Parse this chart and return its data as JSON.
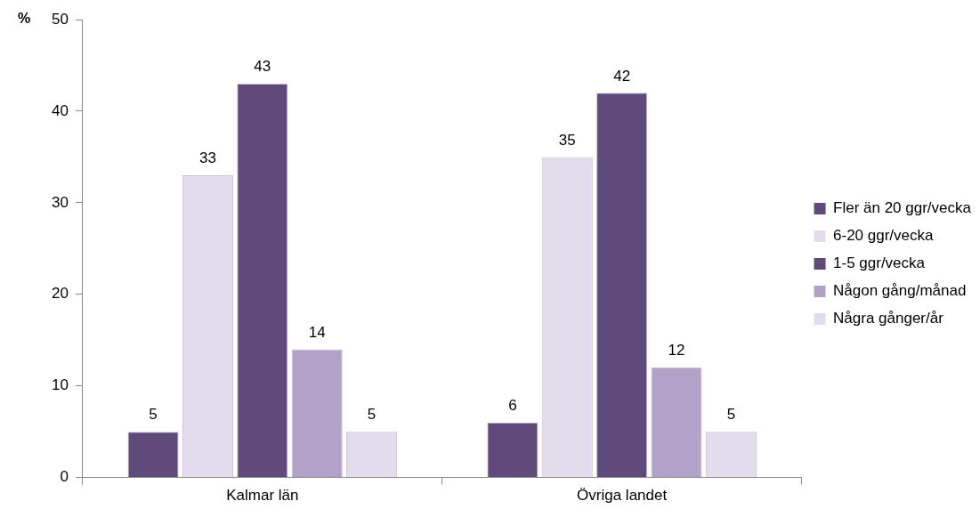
{
  "chart_data": {
    "type": "bar",
    "ylabel": "%",
    "categories": [
      "Kalmar län",
      "Övriga landet"
    ],
    "series": [
      {
        "name": "Fler än 20 ggr/vecka",
        "color": "#5f4a7b",
        "values": [
          5,
          6
        ]
      },
      {
        "name": "6-20 ggr/vecka",
        "color": "#e2dcec",
        "values": [
          33,
          35
        ]
      },
      {
        "name": "1-5 ggr/vecka",
        "color": "#5f4a7b",
        "values": [
          43,
          42
        ]
      },
      {
        "name": "Någon gång/månad",
        "color": "#b3a2c7",
        "values": [
          14,
          12
        ]
      },
      {
        "name": "Några gånger/år",
        "color": "#e2dcec",
        "values": [
          5,
          5
        ]
      }
    ],
    "ylim": [
      0,
      50
    ],
    "yticks": [
      0,
      10,
      20,
      30,
      40,
      50
    ],
    "grid": false,
    "legend": "right",
    "data_labels": true
  }
}
